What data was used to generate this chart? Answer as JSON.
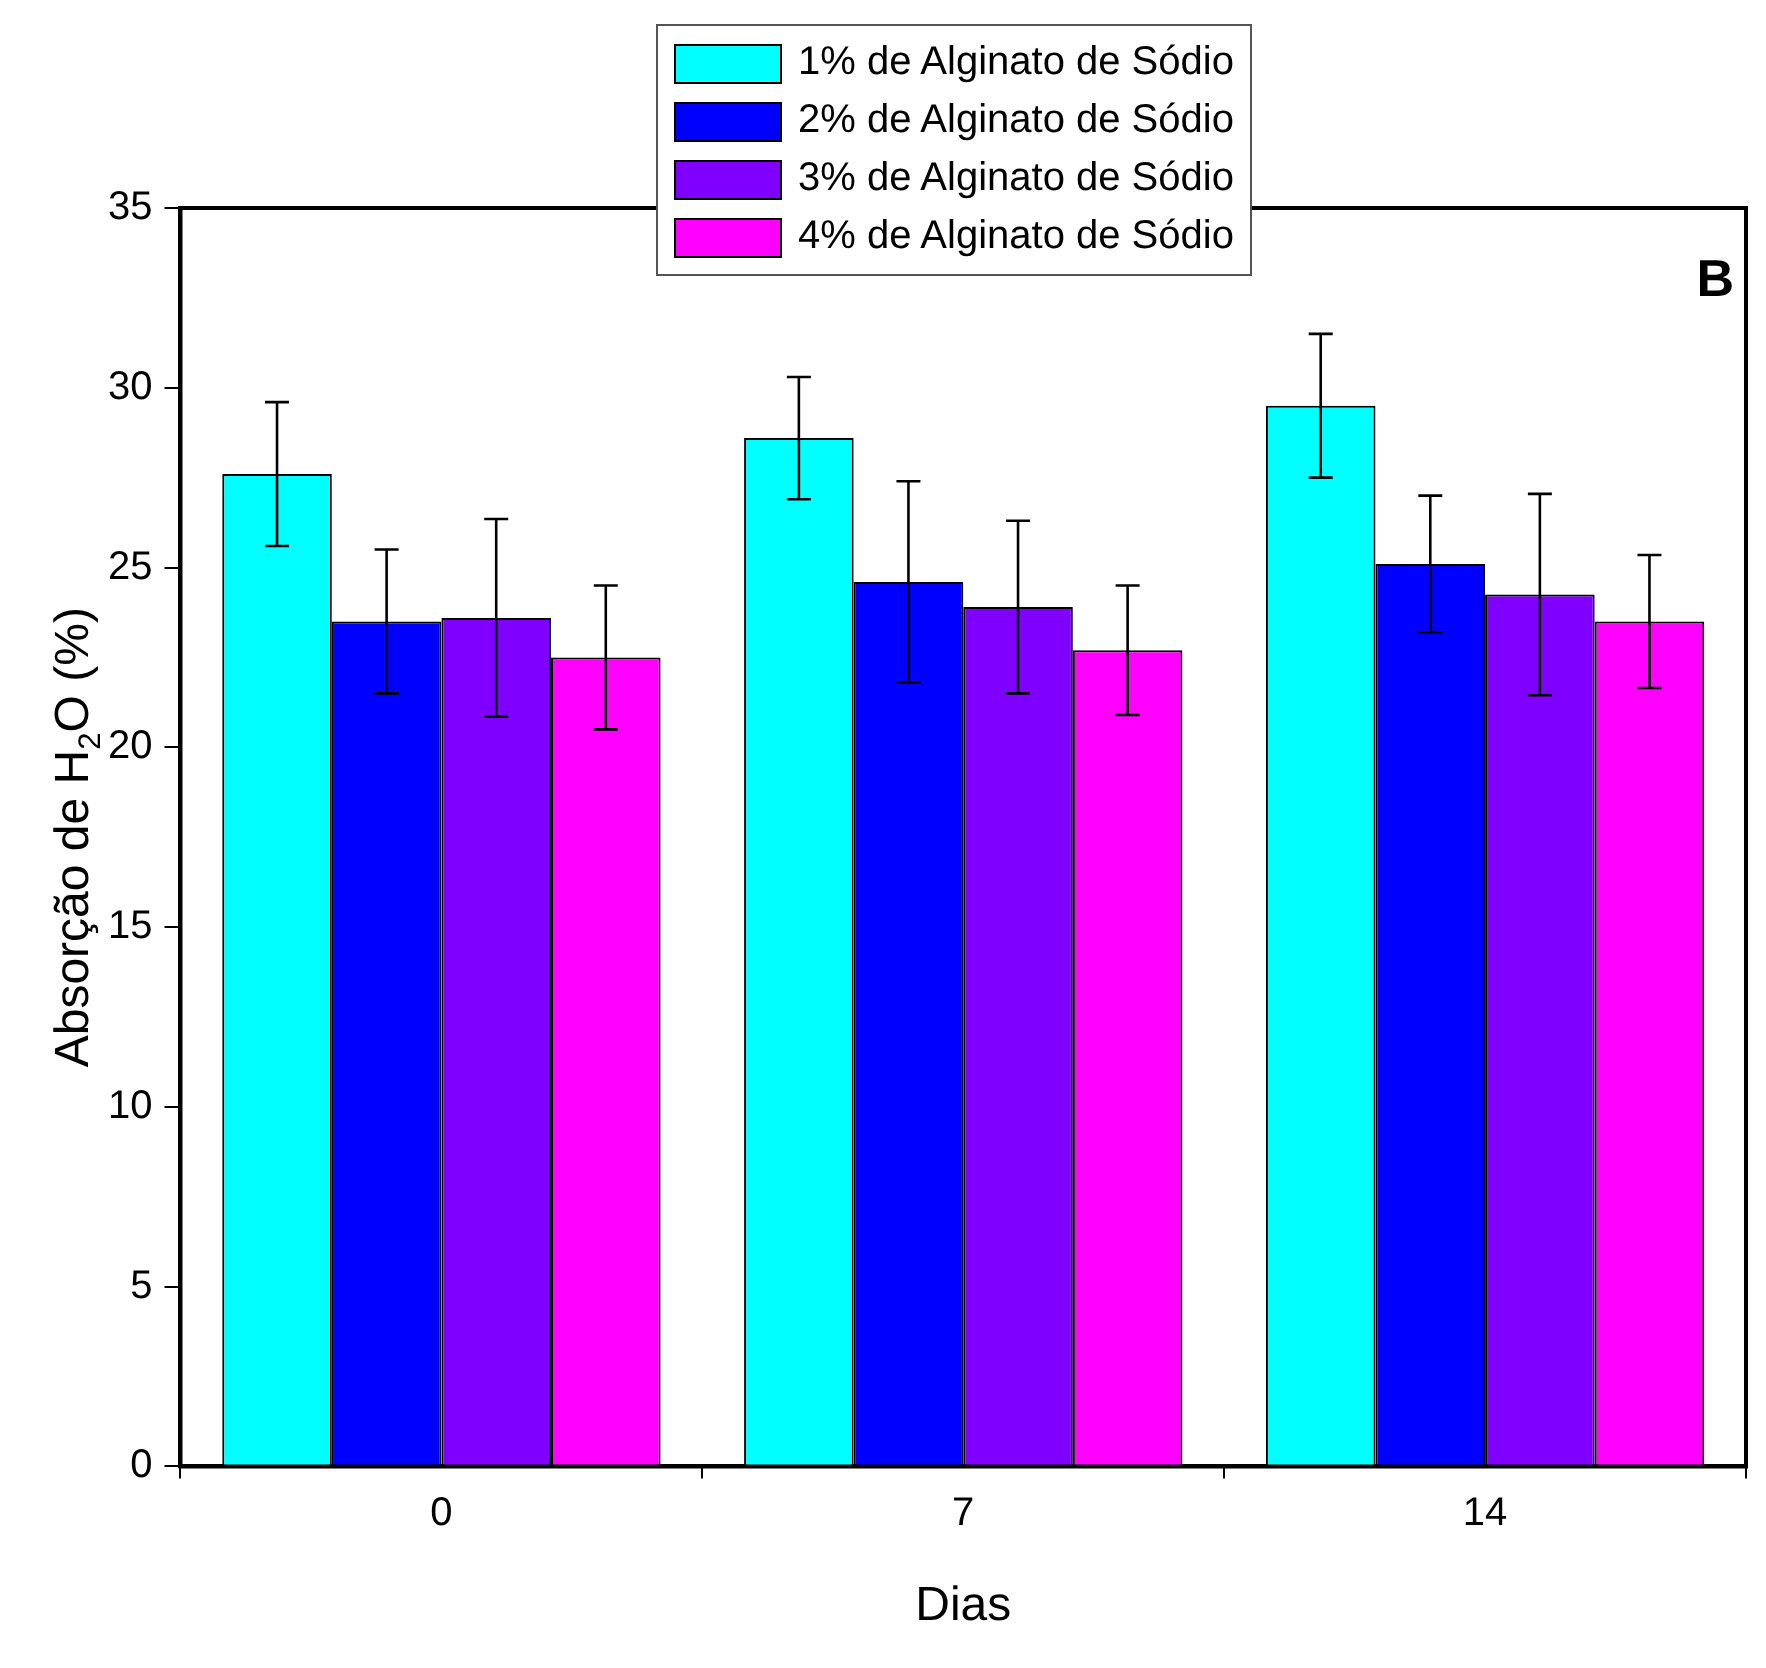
{
  "chart_data": {
    "type": "bar",
    "xlabel": "Dias",
    "ylabel": "Absorção de H$_{2}$O (%)",
    "categories": [
      "0",
      "7",
      "14"
    ],
    "series": [
      {
        "name": "1% de Alginato de Sódio",
        "color": "#00ffff",
        "values": [
          27.6,
          28.6,
          29.5
        ],
        "errors": [
          2.0,
          1.7,
          2.0
        ]
      },
      {
        "name": "2% de Alginato de Sódio",
        "color": "#0000ff",
        "values": [
          23.5,
          24.6,
          25.1
        ],
        "errors": [
          2.0,
          2.8,
          1.9
        ]
      },
      {
        "name": "3% de Alginato de Sódio",
        "color": "#8000ff",
        "values": [
          23.6,
          23.9,
          24.25
        ],
        "errors": [
          2.75,
          2.4,
          2.8
        ]
      },
      {
        "name": "4% de Alginato de Sódio",
        "color": "#ff00ff",
        "values": [
          22.5,
          22.7,
          23.5
        ],
        "errors": [
          2.0,
          1.8,
          1.85
        ]
      }
    ],
    "ylim": [
      0,
      35
    ],
    "yticks": [
      0,
      5,
      10,
      15,
      20,
      25,
      30,
      35
    ],
    "annotations": [
      "B"
    ],
    "grid": false,
    "legend": "top"
  }
}
